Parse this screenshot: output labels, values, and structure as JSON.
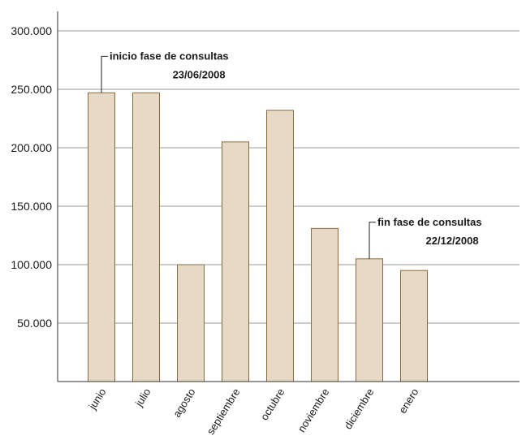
{
  "chart_data": {
    "type": "bar",
    "title": "",
    "xlabel": "",
    "ylabel": "",
    "categories": [
      "junio",
      "julio",
      "agosto",
      "septiembre",
      "octubre",
      "noviembre",
      "diciembre",
      "enero"
    ],
    "values": [
      247000,
      247000,
      100000,
      205000,
      232000,
      131000,
      105000,
      95000
    ],
    "ylim": [
      0,
      300000
    ],
    "yticks": [
      50000,
      100000,
      150000,
      200000,
      250000,
      300000
    ],
    "ytick_labels": [
      "50.000",
      "100.000",
      "150.000",
      "200.000",
      "250.000",
      "300.000"
    ],
    "grid": true,
    "legend": "none",
    "colors": {
      "bar_fill": "#e6d9c6",
      "bar_stroke": "#8c6a3c",
      "grid": "#9a9a9a",
      "axis": "#333333"
    },
    "annotations": [
      {
        "category": "junio",
        "line1": "inicio fase de consultas",
        "line2": "23/06/2008"
      },
      {
        "category": "diciembre",
        "line1": "fin fase de consultas",
        "line2": "22/12/2008"
      }
    ]
  }
}
